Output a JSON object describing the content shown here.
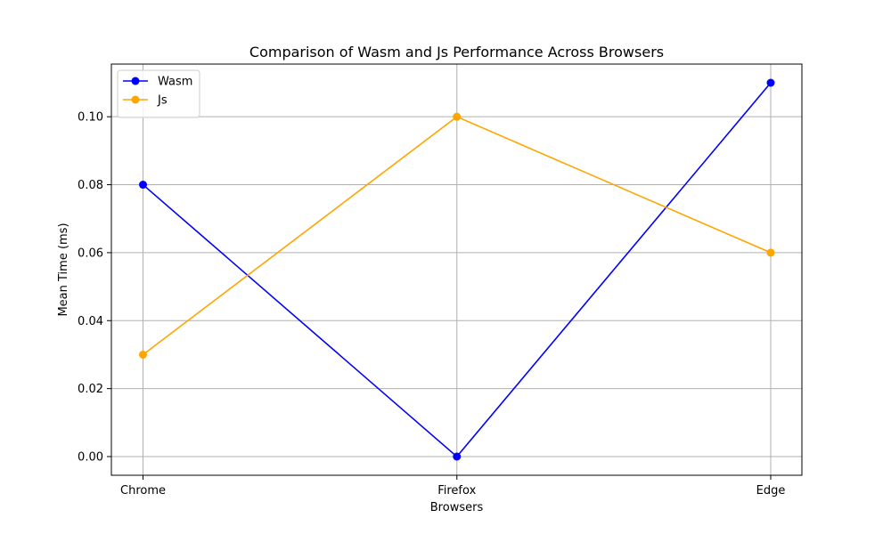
{
  "chart_data": {
    "type": "line",
    "title": "Comparison of Wasm and Js Performance Across Browsers",
    "xlabel": "Browsers",
    "ylabel": "Mean Time (ms)",
    "categories": [
      "Chrome",
      "Firefox",
      "Edge"
    ],
    "series": [
      {
        "name": "Wasm",
        "values": [
          0.08,
          0.0,
          0.11
        ],
        "color": "#0000ff",
        "marker": "circle"
      },
      {
        "name": "Js",
        "values": [
          0.03,
          0.1,
          0.06
        ],
        "color": "#ffa500",
        "marker": "circle"
      }
    ],
    "ylim": [
      -0.0055,
      0.1155
    ],
    "yticks": [
      "0.00",
      "0.02",
      "0.04",
      "0.06",
      "0.08",
      "0.10"
    ],
    "grid": true,
    "legend": "top-left"
  }
}
